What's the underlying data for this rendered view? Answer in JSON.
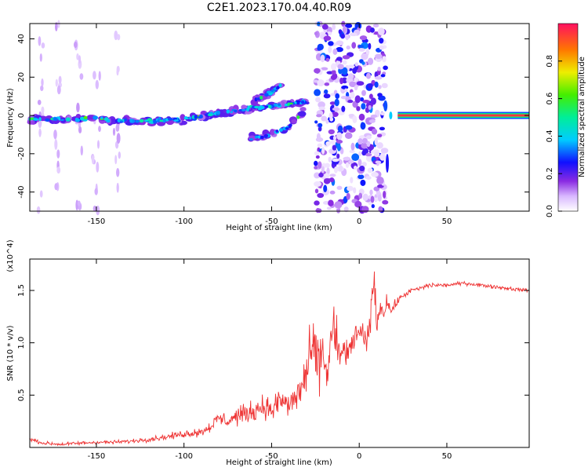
{
  "title": "C2E1.2023.170.04.40.R09",
  "colors": {
    "axis": "#000000",
    "snr_line": "#ee3333",
    "amp_strong": "#ff3030",
    "amp_mid": "#22dd22",
    "amp_weak": "#2222ee"
  },
  "chart_data": [
    {
      "type": "heatmap",
      "xlabel": "Height of straight line (km)",
      "ylabel": "Frequency (Hz)",
      "xlim": [
        -188,
        97
      ],
      "ylim": [
        -50,
        48
      ],
      "xticks": [
        -150,
        -100,
        -50,
        0,
        50
      ],
      "xtick_labels": [
        "-150",
        "-100",
        "-50",
        "0",
        "50"
      ],
      "yticks": [
        -40,
        -20,
        0,
        20,
        40
      ],
      "ytick_labels": [
        "-40",
        "-20",
        "0",
        "20",
        "40"
      ],
      "colorbar": {
        "label": "Normalized spectral amplitude",
        "range": [
          0.0,
          1.0
        ],
        "ticks": [
          0.0,
          0.2,
          0.4,
          0.6,
          0.8
        ],
        "tick_labels": [
          "0.0",
          "0.2",
          "0.4",
          "0.6",
          "0.8"
        ]
      },
      "features": [
        {
          "name": "main ridge",
          "x": [
            -188,
            -150,
            -120,
            -100,
            -80,
            -60,
            -40,
            -28
          ],
          "freq": [
            -2,
            -2,
            -3,
            -2,
            1,
            4,
            6,
            7
          ],
          "amplitude": 0.35
        },
        {
          "name": "upper branch",
          "x": [
            -60,
            -50,
            -45
          ],
          "freq": [
            8,
            12,
            16
          ],
          "amplitude": 0.3
        },
        {
          "name": "lower branch",
          "x": [
            -62,
            -50,
            -40,
            -32
          ],
          "freq": [
            -12,
            -10,
            -6,
            2
          ],
          "amplitude": 0.3
        },
        {
          "name": "broadband scatter",
          "x_range": [
            -25,
            15
          ],
          "freq_range": [
            -50,
            48
          ],
          "amplitude": 0.25
        },
        {
          "name": "steady tone",
          "x_range": [
            22,
            97
          ],
          "freq": 0,
          "amplitude": 0.95
        }
      ]
    },
    {
      "type": "line",
      "xlabel": "Height of straight line (km)",
      "ylabel": "SNR (10 * v/v)",
      "scale_label": "(x10^4)",
      "xlim": [
        -188,
        97
      ],
      "ylim": [
        0,
        1.8
      ],
      "xticks": [
        -150,
        -100,
        -50,
        0,
        50
      ],
      "xtick_labels": [
        "-150",
        "-100",
        "-50",
        "0",
        "50"
      ],
      "yticks": [
        0.5,
        1.0,
        1.5
      ],
      "ytick_labels": [
        "0.5",
        "1.0",
        "1.5"
      ],
      "series": [
        {
          "name": "SNR",
          "x": [
            -188,
            -180,
            -170,
            -160,
            -150,
            -140,
            -130,
            -120,
            -110,
            -100,
            -90,
            -85,
            -80,
            -75,
            -70,
            -65,
            -60,
            -55,
            -50,
            -45,
            -40,
            -35,
            -30,
            -27,
            -24,
            -21,
            -18,
            -15,
            -12,
            -10,
            -8,
            -6,
            -4,
            -2,
            0,
            2,
            4,
            6,
            8,
            10,
            12,
            14,
            16,
            18,
            20,
            22,
            25,
            30,
            35,
            40,
            45,
            50,
            55,
            60,
            65,
            70,
            75,
            80,
            85,
            90,
            97
          ],
          "y": [
            0.08,
            0.04,
            0.03,
            0.04,
            0.05,
            0.05,
            0.06,
            0.08,
            0.1,
            0.13,
            0.15,
            0.2,
            0.28,
            0.25,
            0.3,
            0.32,
            0.35,
            0.4,
            0.35,
            0.45,
            0.4,
            0.5,
            0.7,
            0.95,
            0.8,
            0.9,
            0.7,
            1.2,
            0.85,
            0.9,
            0.95,
            0.85,
            1.0,
            1.1,
            1.05,
            1.1,
            0.95,
            1.2,
            1.6,
            1.2,
            1.35,
            1.3,
            1.4,
            1.3,
            1.35,
            1.4,
            1.45,
            1.5,
            1.52,
            1.55,
            1.55,
            1.55,
            1.56,
            1.57,
            1.56,
            1.55,
            1.54,
            1.53,
            1.52,
            1.51,
            1.5
          ],
          "noise_amplitude": [
            0.02,
            0.02,
            0.02,
            0.02,
            0.02,
            0.02,
            0.02,
            0.03,
            0.03,
            0.04,
            0.05,
            0.06,
            0.08,
            0.08,
            0.1,
            0.1,
            0.12,
            0.12,
            0.13,
            0.15,
            0.17,
            0.2,
            0.25,
            0.3,
            0.3,
            0.3,
            0.3,
            0.35,
            0.25,
            0.2,
            0.2,
            0.2,
            0.15,
            0.15,
            0.12,
            0.12,
            0.15,
            0.2,
            0.25,
            0.15,
            0.12,
            0.1,
            0.08,
            0.06,
            0.05,
            0.04,
            0.03,
            0.03,
            0.03,
            0.03,
            0.02,
            0.02,
            0.02,
            0.02,
            0.02,
            0.02,
            0.02,
            0.02,
            0.02,
            0.02,
            0.02
          ]
        }
      ]
    }
  ]
}
